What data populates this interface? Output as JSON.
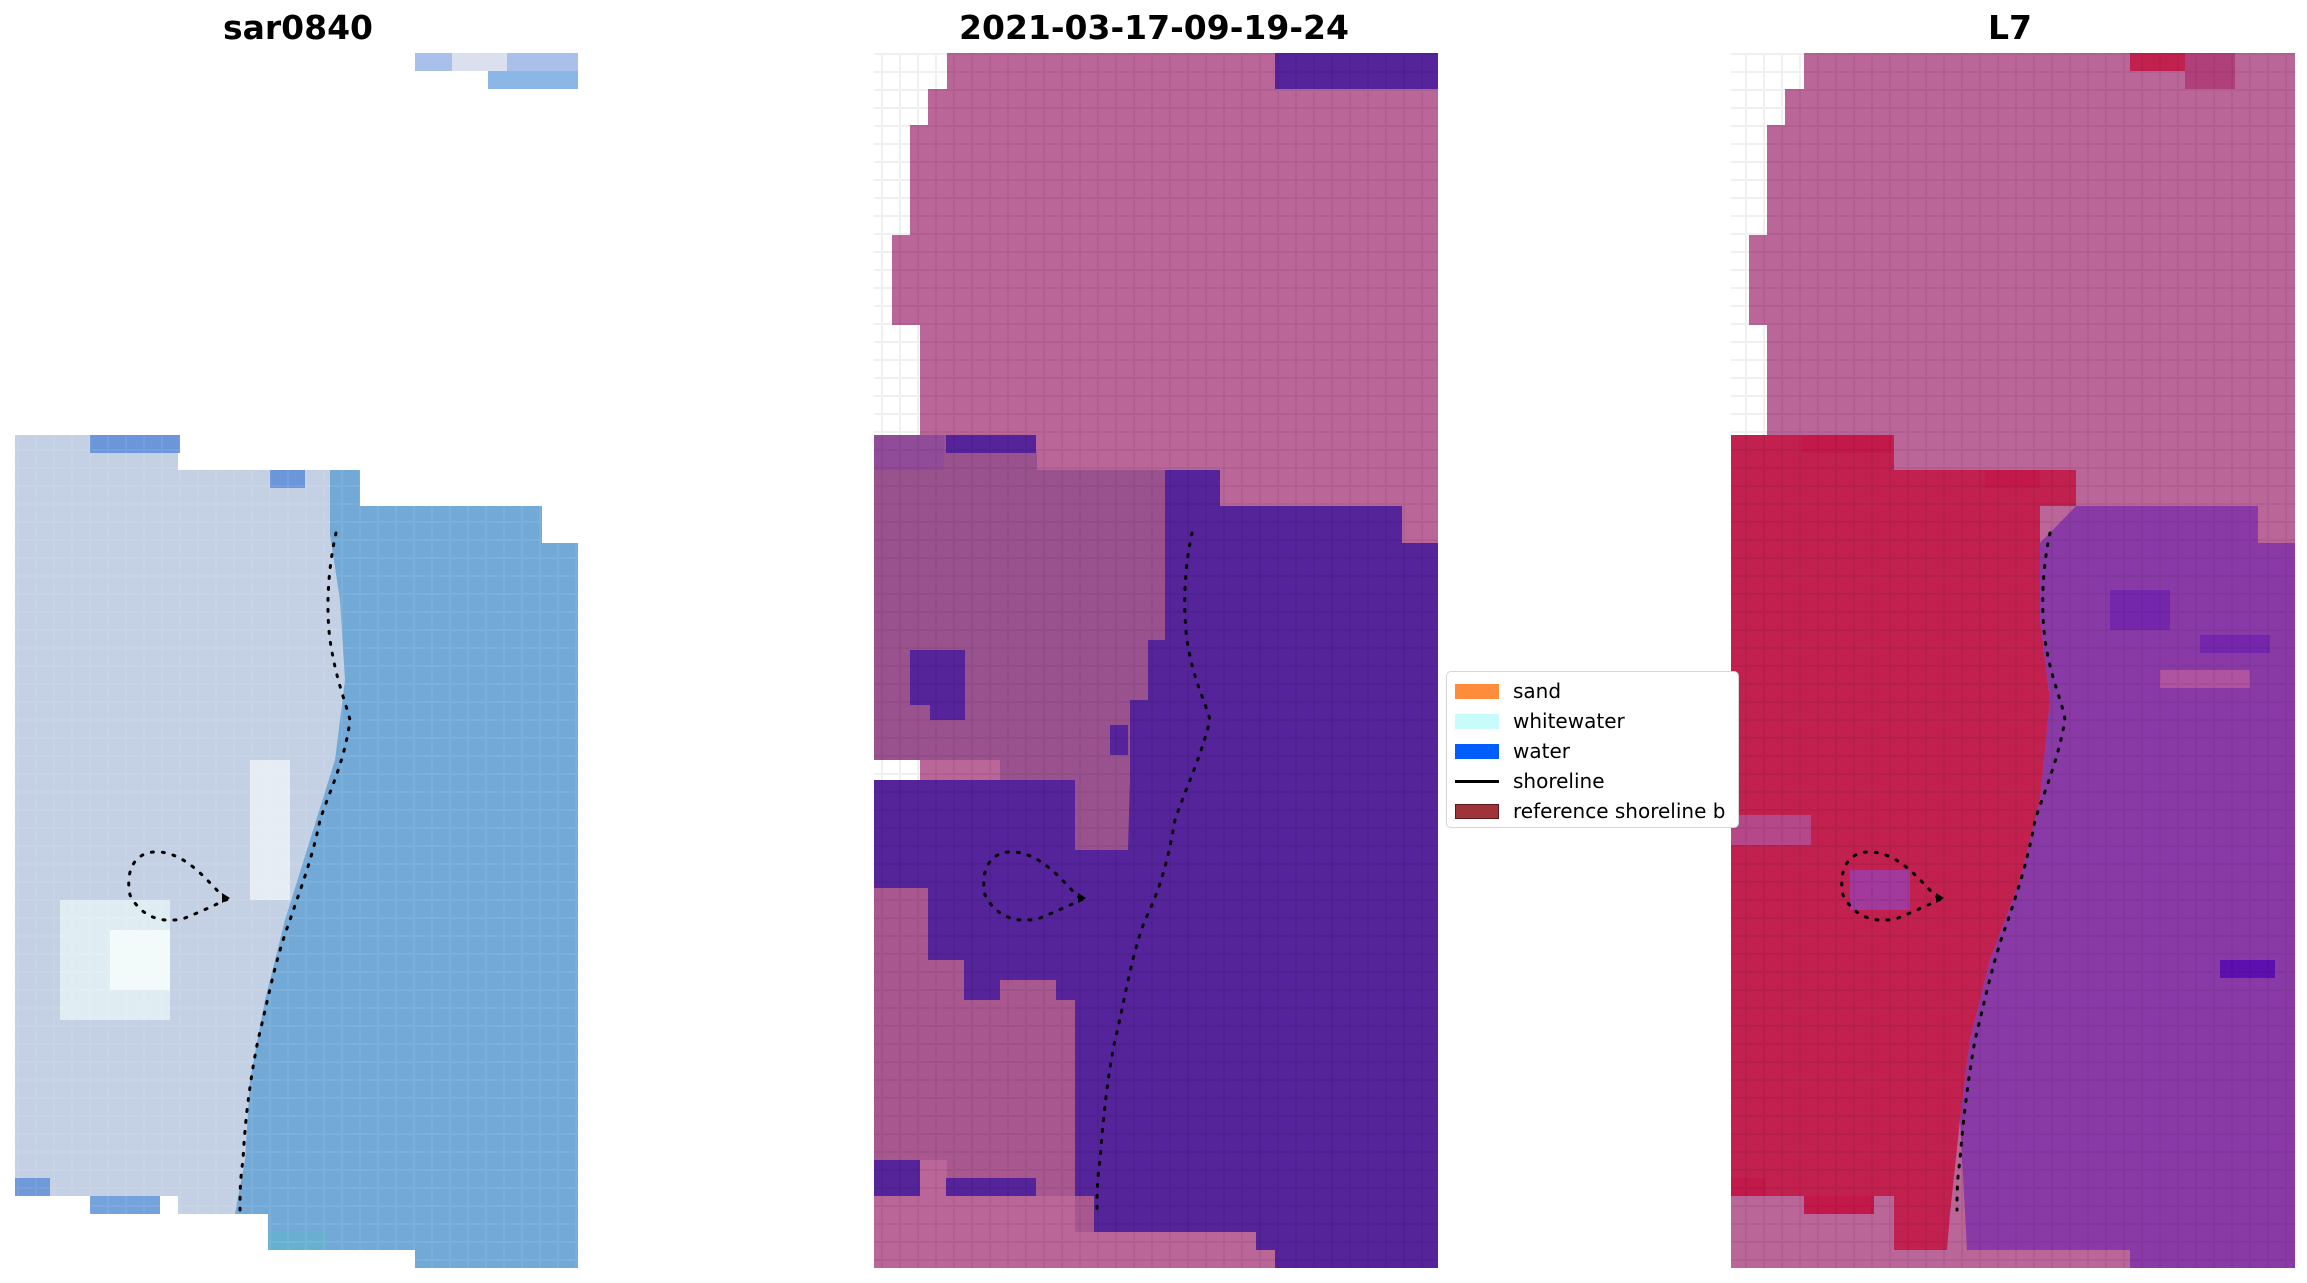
{
  "panels": [
    {
      "title": "sar0840"
    },
    {
      "title": "2021-03-17-09-19-24"
    },
    {
      "title": "L7"
    }
  ],
  "legend": {
    "items": [
      {
        "label": "sand",
        "kind": "patch",
        "color": "#ff8c3a"
      },
      {
        "label": "whitewater",
        "kind": "patch",
        "color": "#c8fcfb"
      },
      {
        "label": "water",
        "kind": "patch",
        "color": "#005eff"
      },
      {
        "label": "shoreline",
        "kind": "line",
        "color": "#000000"
      },
      {
        "label": "reference shoreline b",
        "kind": "patch",
        "color": "#a0333a"
      }
    ]
  },
  "colors": {
    "sar_land": "#c9d6e6",
    "sar_water": "#6fa6d4",
    "class_sand": "#bb6699",
    "class_water": "#55239a",
    "class_land_dark": "#9a528e",
    "l7_land": "#c22150",
    "l7_water": "#8a3aa6",
    "shoreline_dots": "#000000"
  }
}
